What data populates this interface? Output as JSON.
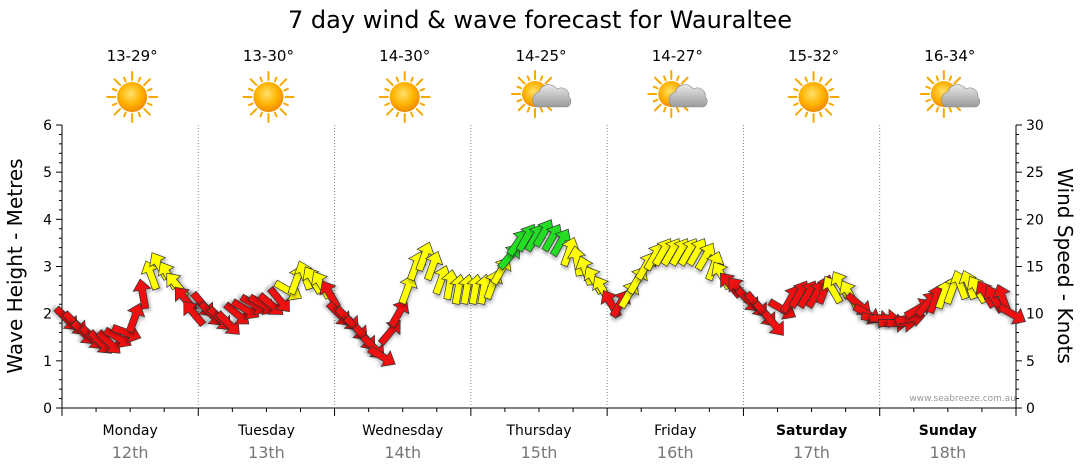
{
  "chart_data": {
    "type": "arrow-series",
    "title": "7 day wind & wave forecast for Wauraltee",
    "ylabel_left": "Wave Height - Metres",
    "ylabel_right": "Wind Speed - Knots",
    "ylim_left": [
      0,
      6
    ],
    "ylim_right": [
      0,
      30
    ],
    "yticks_left": [
      "0",
      "1",
      "2",
      "3",
      "4",
      "5",
      "6"
    ],
    "yticks_right": [
      "0",
      "5",
      "10",
      "15",
      "20",
      "25",
      "30"
    ],
    "grid": true,
    "credit": "www.seabreeze.com.au",
    "days": [
      {
        "name": "Monday",
        "date": "12th",
        "temp": "13-29°",
        "weather": "sunny",
        "bold": false
      },
      {
        "name": "Tuesday",
        "date": "13th",
        "temp": "13-30°",
        "weather": "sunny",
        "bold": false
      },
      {
        "name": "Wednesday",
        "date": "14th",
        "temp": "14-30°",
        "weather": "sunny",
        "bold": false
      },
      {
        "name": "Thursday",
        "date": "15th",
        "temp": "14-25°",
        "weather": "partly-cloudy",
        "bold": false
      },
      {
        "name": "Friday",
        "date": "16th",
        "temp": "14-27°",
        "weather": "partly-cloudy",
        "bold": false
      },
      {
        "name": "Saturday",
        "date": "17th",
        "temp": "15-32°",
        "weather": "sunny",
        "bold": true
      },
      {
        "name": "Sunday",
        "date": "18th",
        "temp": "16-34°",
        "weather": "partly-cloudy",
        "bold": true
      }
    ],
    "color_scale": {
      "red": "#ee1111",
      "yellow": "#ffff00",
      "green": "#22dd22"
    },
    "wind_knots": [
      11,
      10,
      9,
      8,
      7,
      8,
      8,
      7,
      9,
      11,
      14,
      15,
      14,
      13,
      11,
      12,
      11,
      10,
      9,
      8,
      9,
      11,
      12,
      11,
      11,
      12,
      13,
      14,
      14,
      13,
      13,
      12,
      11,
      10,
      9,
      8,
      7,
      6,
      8,
      10,
      13,
      15,
      16,
      14,
      13,
      13,
      13,
      13,
      13,
      13,
      14,
      16,
      18,
      19,
      19,
      19,
      19,
      18,
      18,
      17,
      16,
      14,
      13,
      13,
      12,
      12,
      13,
      14,
      16,
      17,
      17,
      17,
      17,
      17,
      16,
      15,
      14,
      13,
      12,
      12,
      11,
      11,
      10,
      9,
      11,
      12,
      12,
      12,
      12,
      12,
      13,
      14,
      13,
      11,
      10,
      9,
      9,
      9,
      9,
      10,
      11,
      12,
      12,
      13,
      13,
      14,
      14,
      13,
      12,
      11,
      12,
      10
    ],
    "wave_height_m": [
      1.9,
      1.8,
      1.6,
      1.5,
      1.4,
      1.4,
      1.5,
      1.6,
      1.9,
      2.4,
      2.8,
      3.0,
      2.8,
      2.6,
      2.3,
      2.0,
      2.2,
      2.0,
      1.9,
      1.8,
      2.0,
      2.1,
      2.2,
      2.2,
      2.2,
      2.3,
      2.5,
      2.7,
      2.8,
      2.7,
      2.6,
      2.4,
      2.0,
      1.9,
      1.7,
      1.5,
      1.3,
      1.1,
      1.6,
      2.0,
      2.5,
      3.0,
      3.2,
      3.0,
      2.7,
      2.6,
      2.5,
      2.5,
      2.5,
      2.5,
      2.6,
      2.9,
      3.2,
      3.5,
      3.6,
      3.6,
      3.7,
      3.6,
      3.5,
      3.3,
      3.1,
      2.9,
      2.7,
      2.5,
      2.2,
      2.2,
      2.4,
      2.7,
      3.0,
      3.2,
      3.3,
      3.3,
      3.3,
      3.3,
      3.3,
      3.2,
      3.0,
      2.8,
      2.6,
      2.5,
      2.3,
      2.2,
      2.0,
      1.8,
      2.1,
      2.3,
      2.4,
      2.4,
      2.4,
      2.5,
      2.5,
      2.6,
      2.4,
      2.2,
      2.0,
      1.9,
      1.9,
      1.8,
      1.8,
      1.9,
      2.1,
      2.2,
      2.3,
      2.4,
      2.5,
      2.6,
      2.6,
      2.5,
      2.4,
      2.3,
      2.3,
      2.0
    ],
    "wind_direction_deg_from": [
      315,
      315,
      315,
      315,
      315,
      315,
      300,
      290,
      200,
      170,
      160,
      150,
      150,
      140,
      140,
      140,
      320,
      315,
      315,
      315,
      310,
      300,
      300,
      300,
      310,
      320,
      300,
      200,
      160,
      150,
      150,
      150,
      315,
      315,
      315,
      320,
      315,
      300,
      220,
      210,
      200,
      200,
      200,
      200,
      200,
      190,
      190,
      190,
      190,
      190,
      200,
      210,
      220,
      215,
      210,
      210,
      210,
      210,
      210,
      200,
      170,
      160,
      150,
      150,
      150,
      210,
      210,
      210,
      210,
      210,
      210,
      210,
      210,
      210,
      210,
      210,
      200,
      150,
      140,
      140,
      315,
      320,
      320,
      320,
      300,
      210,
      210,
      210,
      210,
      200,
      150,
      150,
      150,
      310,
      300,
      280,
      270,
      270,
      270,
      260,
      240,
      220,
      200,
      200,
      200,
      160,
      160,
      150,
      150,
      150,
      160,
      300
    ]
  }
}
